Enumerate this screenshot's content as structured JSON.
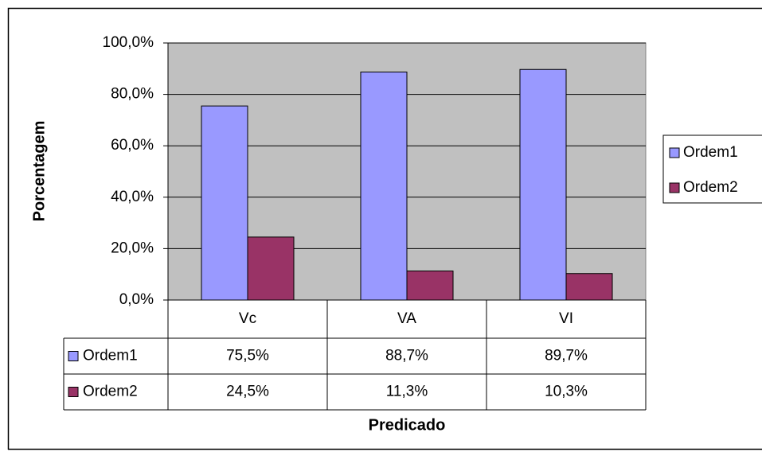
{
  "chart_data": {
    "type": "bar",
    "categories": [
      "Vc",
      "VA",
      "VI"
    ],
    "series": [
      {
        "name": "Ordem1",
        "color": "#9999ff",
        "values": [
          75.5,
          88.7,
          89.7
        ],
        "value_labels": [
          "75,5%",
          "88,7%",
          "89,7%"
        ]
      },
      {
        "name": "Ordem2",
        "color": "#993366",
        "values": [
          24.5,
          11.3,
          10.3
        ],
        "value_labels": [
          "24,5%",
          "11,3%",
          "10,3%"
        ]
      }
    ],
    "xlabel": "Predicado",
    "ylabel": "Porcentagem",
    "ylim": [
      0,
      100
    ],
    "yticks": [
      {
        "value": 0,
        "label": "0,0%"
      },
      {
        "value": 20,
        "label": "20,0%"
      },
      {
        "value": 40,
        "label": "40,0%"
      },
      {
        "value": 60,
        "label": "60,0%"
      },
      {
        "value": 80,
        "label": "80,0%"
      },
      {
        "value": 100,
        "label": "100,0%"
      }
    ],
    "grid": true,
    "legend": "right",
    "plot_background": "#c0c0c0"
  }
}
